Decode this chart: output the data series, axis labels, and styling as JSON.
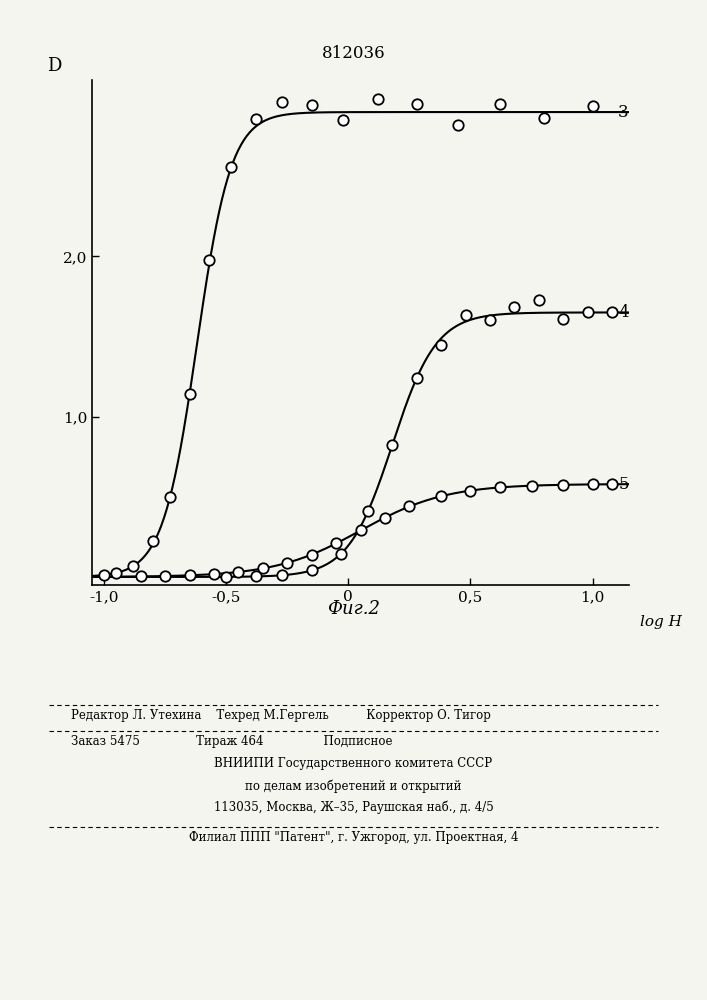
{
  "title": "812036",
  "xlabel": "log H",
  "ylabel": "D",
  "xlim": [
    -1.05,
    1.15
  ],
  "ylim": [
    -0.05,
    3.1
  ],
  "xticks": [
    -1.0,
    -0.5,
    0.0,
    0.5,
    1.0
  ],
  "yticks": [
    1.0,
    2.0
  ],
  "fig_caption": "Фиг.2",
  "curve3_label": "3",
  "curve4_label": "4",
  "curve5_label": "5",
  "background_color": "#f5f5f0",
  "curve_color": "#000000",
  "footer_line1": "Редактор Л. Утехина    Техред М.Гергель          Корректор О. Тигор",
  "footer_line2": "Заказ 5475               Тираж 464                Подписное",
  "footer_line3": "ВНИИПИ Государственного комитета СССР",
  "footer_line4": "по делам изобретений и открытий",
  "footer_line5": "113035, Москва, Ж–35, Раушская наб., д. 4/5",
  "footer_line6": "Филиал ППП \"Патент\", г. Ужгород, ул. Проектная, 4"
}
